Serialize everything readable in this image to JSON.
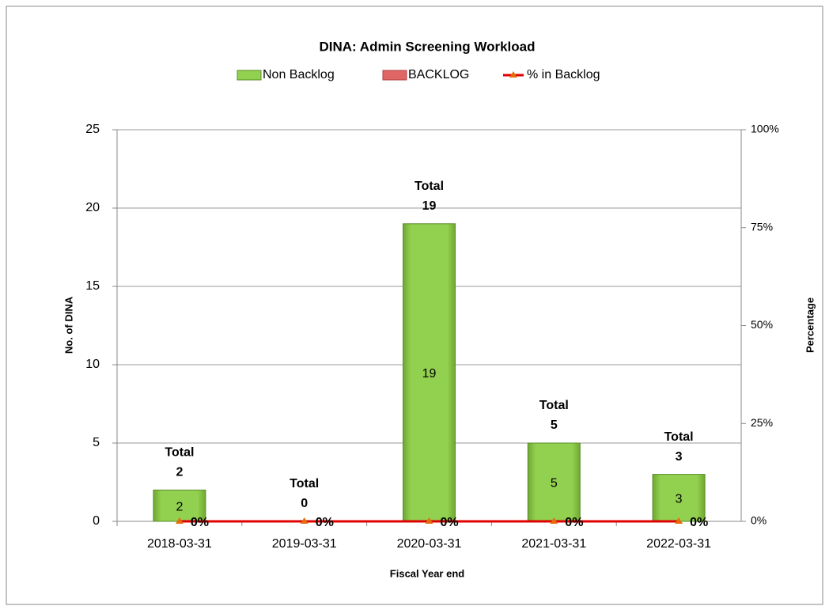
{
  "chart_data": {
    "type": "bar",
    "title": "DINA: Admin Screening Workload",
    "categories": [
      "2018-03-31",
      "2019-03-31",
      "2020-03-31",
      "2021-03-31",
      "2022-03-31"
    ],
    "series": [
      {
        "name": "Non Backlog",
        "color": "#92d050",
        "values": [
          2,
          0,
          19,
          5,
          3
        ]
      },
      {
        "name": "BACKLOG",
        "color": "#e06666",
        "values": [
          0,
          0,
          0,
          0,
          0
        ]
      },
      {
        "name": "% in Backlog",
        "color": "#e00000",
        "type": "line",
        "axis": "y2",
        "values": [
          0,
          0,
          0,
          0,
          0
        ],
        "value_labels": [
          "0%",
          "0%",
          "0%",
          "0%",
          "0%"
        ]
      }
    ],
    "total_label": "Total",
    "totals": [
      2,
      0,
      19,
      5,
      3
    ],
    "xlabel": "Fiscal Year end",
    "ylabel": "No. of DINA",
    "y2label": "Percentage",
    "ylim": [
      0,
      25
    ],
    "yticks": [
      0,
      5,
      10,
      15,
      20,
      25
    ],
    "y2lim": [
      0,
      100
    ],
    "y2ticks": [
      {
        "value": 0,
        "label": "0%"
      },
      {
        "value": 25,
        "label": "25%"
      },
      {
        "value": 50,
        "label": "50%"
      },
      {
        "value": 75,
        "label": "75%"
      },
      {
        "value": 100,
        "label": "100%"
      }
    ],
    "grid": true,
    "legend": "top"
  }
}
